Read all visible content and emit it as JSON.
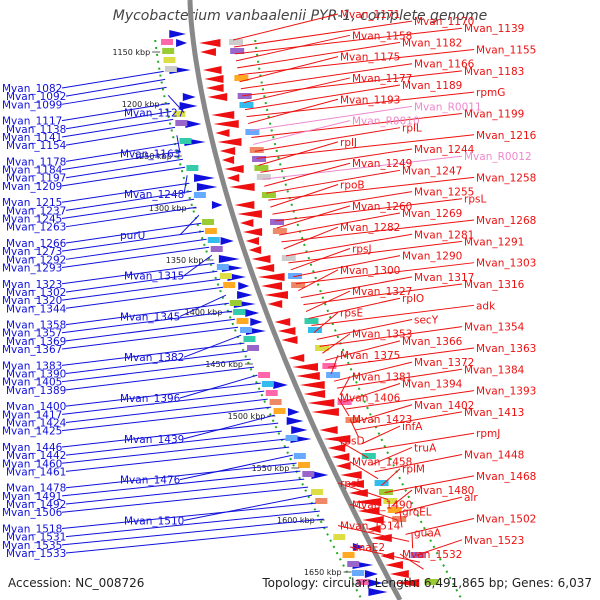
{
  "title": "Mycobacterium vanbaalenii PYR-1, complete genome",
  "footer": {
    "accession": "Accession: NC_008726",
    "summary": "Topology: circular; Length: 6,491,865 bp; Genes: 6,037"
  },
  "colors": {
    "forward": "#1010dd",
    "reverse": "#ee1010",
    "rna": "#ee88cc",
    "backbone": "#888888",
    "dots": "#22aa22"
  },
  "ticks": [
    "1150 kbp",
    "1200 kbp",
    "1250 kbp",
    "1300 kbp",
    "1350 kbp",
    "1400 kbp",
    "1450 kbp",
    "1500 kbp",
    "1550 kbp",
    "1600 kbp",
    "1650 kbp"
  ],
  "left_labels": [
    {
      "text": "Mvan_1082"
    },
    {
      "text": "Mvan_1092"
    },
    {
      "text": "Mvan_1099"
    },
    {
      "text": "Mvan_1127"
    },
    {
      "text": "Mvan_1117"
    },
    {
      "text": "Mvan_1138"
    },
    {
      "text": "Mvan_1141"
    },
    {
      "text": "Mvan_1154"
    },
    {
      "text": "Mvan_1163"
    },
    {
      "text": "Mvan_1178"
    },
    {
      "text": "Mvan_1184"
    },
    {
      "text": "Mvan_1197"
    },
    {
      "text": "Mvan_1209"
    },
    {
      "text": "Mvan_1248"
    },
    {
      "text": "Mvan_1215"
    },
    {
      "text": "Mvan_1237"
    },
    {
      "text": "Mvan_1245"
    },
    {
      "text": "Mvan_1263"
    },
    {
      "text": "purU"
    },
    {
      "text": "Mvan_1266"
    },
    {
      "text": "Mvan_1273"
    },
    {
      "text": "Mvan_1292"
    },
    {
      "text": "Mvan_1293"
    },
    {
      "text": "Mvan_1315"
    },
    {
      "text": "Mvan_1323"
    },
    {
      "text": "Mvan_1302"
    },
    {
      "text": "Mvan_1320"
    },
    {
      "text": "Mvan_1344"
    },
    {
      "text": "Mvan_1345"
    },
    {
      "text": "Mvan_1358"
    },
    {
      "text": "Mvan_1357"
    },
    {
      "text": "Mvan_1369"
    },
    {
      "text": "Mvan_1367"
    },
    {
      "text": "Mvan_1382"
    },
    {
      "text": "Mvan_1383"
    },
    {
      "text": "Mvan_1390"
    },
    {
      "text": "Mvan_1405"
    },
    {
      "text": "Mvan_1389"
    },
    {
      "text": "Mvan_1396"
    },
    {
      "text": "Mvan_1400"
    },
    {
      "text": "Mvan_1417"
    },
    {
      "text": "Mvan_1424"
    },
    {
      "text": "Mvan_1425"
    },
    {
      "text": "Mvan_1439"
    },
    {
      "text": "Mvan_1446"
    },
    {
      "text": "Mvan_1442"
    },
    {
      "text": "Mvan_1460"
    },
    {
      "text": "Mvan_1461"
    },
    {
      "text": "Mvan_1476"
    },
    {
      "text": "Mvan_1478"
    },
    {
      "text": "Mvan_1491"
    },
    {
      "text": "Mvan_1492"
    },
    {
      "text": "Mvan_1506"
    },
    {
      "text": "Mvan_1510"
    },
    {
      "text": "Mvan_1518"
    },
    {
      "text": "Mvan_1531"
    },
    {
      "text": "Mvan_1535"
    },
    {
      "text": "Mvan_1533"
    }
  ],
  "right_labels": [
    {
      "text": "Mvan_1171"
    },
    {
      "text": "Mvan_1170"
    },
    {
      "text": "Mvan_1139"
    },
    {
      "text": "Mvan_1158"
    },
    {
      "text": "Mvan_1182"
    },
    {
      "text": "Mvan_1155"
    },
    {
      "text": "Mvan_1175"
    },
    {
      "text": "Mvan_1166"
    },
    {
      "text": "Mvan_1183"
    },
    {
      "text": "Mvan_1177"
    },
    {
      "text": "Mvan_1189"
    },
    {
      "text": "rpmG"
    },
    {
      "text": "Mvan_1193"
    },
    {
      "text": "Mvan_R0011",
      "rna": true
    },
    {
      "text": "Mvan_1199"
    },
    {
      "text": "Mvan_R0010",
      "rna": true
    },
    {
      "text": "rplL"
    },
    {
      "text": "Mvan_1216"
    },
    {
      "text": "rplJ"
    },
    {
      "text": "Mvan_1244"
    },
    {
      "text": "Mvan_R0012",
      "rna": true
    },
    {
      "text": "Mvan_1249"
    },
    {
      "text": "Mvan_1247"
    },
    {
      "text": "Mvan_1258"
    },
    {
      "text": "rpoB"
    },
    {
      "text": "Mvan_1255"
    },
    {
      "text": "rpsL"
    },
    {
      "text": "Mvan_1260"
    },
    {
      "text": "Mvan_1269"
    },
    {
      "text": "Mvan_1268"
    },
    {
      "text": "Mvan_1282"
    },
    {
      "text": "Mvan_1281"
    },
    {
      "text": "Mvan_1291"
    },
    {
      "text": "rpsJ"
    },
    {
      "text": "Mvan_1290"
    },
    {
      "text": "Mvan_1303"
    },
    {
      "text": "Mvan_1300"
    },
    {
      "text": "Mvan_1317"
    },
    {
      "text": "Mvan_1316"
    },
    {
      "text": "Mvan_1327"
    },
    {
      "text": "rplO"
    },
    {
      "text": "adk"
    },
    {
      "text": "rpsE"
    },
    {
      "text": "secY"
    },
    {
      "text": "Mvan_1354"
    },
    {
      "text": "Mvan_1353"
    },
    {
      "text": "Mvan_1366"
    },
    {
      "text": "Mvan_1363"
    },
    {
      "text": "Mvan_1375"
    },
    {
      "text": "Mvan_1372"
    },
    {
      "text": "Mvan_1384"
    },
    {
      "text": "Mvan_1381"
    },
    {
      "text": "Mvan_1394"
    },
    {
      "text": "Mvan_1393"
    },
    {
      "text": "Mvan_1406"
    },
    {
      "text": "Mvan_1402"
    },
    {
      "text": "Mvan_1413"
    },
    {
      "text": "Mvan_1423"
    },
    {
      "text": "infA"
    },
    {
      "text": "rpmJ"
    },
    {
      "text": "rpsD"
    },
    {
      "text": "truA"
    },
    {
      "text": "Mvan_1448"
    },
    {
      "text": "Mvan_1458"
    },
    {
      "text": "rplM"
    },
    {
      "text": "Mvan_1468"
    },
    {
      "text": "rpsI"
    },
    {
      "text": "Mvan_1480"
    },
    {
      "text": "alr"
    },
    {
      "text": "Mvan_1490"
    },
    {
      "text": "groEL"
    },
    {
      "text": "Mvan_1502"
    },
    {
      "text": "Mvan_1514"
    },
    {
      "text": "guaA"
    },
    {
      "text": "Mvan_1523"
    },
    {
      "text": "dnaE2"
    },
    {
      "text": "Mvan_1532"
    }
  ]
}
